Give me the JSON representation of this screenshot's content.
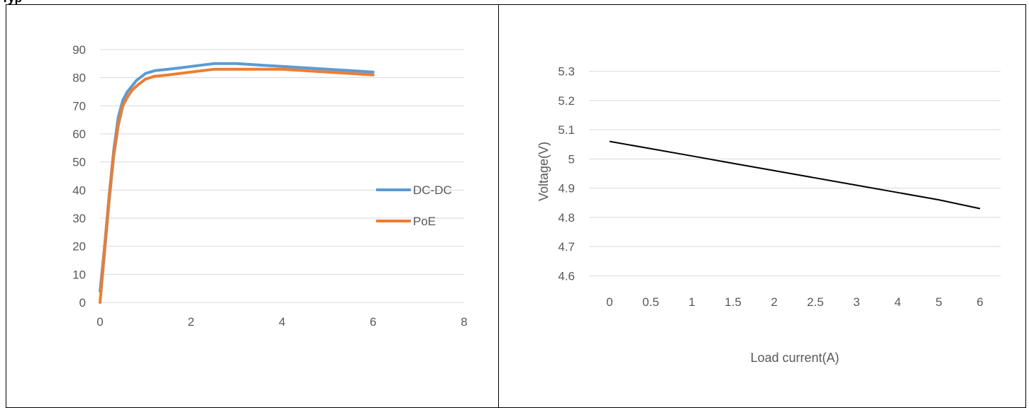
{
  "page": {
    "top_fragment": "Typ"
  },
  "colors": {
    "grid": "#d9d9d9",
    "dcdc": "#5b9bd5",
    "poe": "#ed7d31",
    "voltage": "#000000"
  },
  "chart_data": [
    {
      "type": "scatter",
      "title": "",
      "xlabel": "",
      "ylabel": "",
      "xlim": [
        0,
        8
      ],
      "ylim": [
        0,
        90
      ],
      "xticks": [
        "0",
        "2",
        "4",
        "6",
        "8"
      ],
      "yticks": [
        "0",
        "10",
        "20",
        "30",
        "40",
        "50",
        "60",
        "70",
        "80",
        "90"
      ],
      "grid": true,
      "legend": "right",
      "series": [
        {
          "name": "DC-DC",
          "color": "#5b9bd5",
          "x": [
            0,
            0.1,
            0.2,
            0.3,
            0.4,
            0.5,
            0.6,
            0.7,
            0.8,
            1.0,
            1.2,
            1.5,
            2.0,
            2.5,
            3.0,
            4.0,
            5.0,
            6.0
          ],
          "y": [
            4,
            20,
            38,
            54,
            66,
            72,
            75,
            77,
            79,
            81.5,
            82.5,
            83,
            84,
            85,
            85,
            84,
            83,
            82
          ]
        },
        {
          "name": "PoE",
          "color": "#ed7d31",
          "x": [
            0,
            0.1,
            0.2,
            0.3,
            0.4,
            0.5,
            0.6,
            0.7,
            0.8,
            1.0,
            1.2,
            1.5,
            2.0,
            2.5,
            3.0,
            4.0,
            5.0,
            6.0
          ],
          "y": [
            0,
            18,
            36,
            52,
            63,
            70,
            73,
            75.5,
            77,
            79.5,
            80.5,
            81,
            82,
            83,
            83,
            83,
            82,
            81
          ]
        }
      ]
    },
    {
      "type": "line",
      "title": "",
      "xlabel": "Load current(A)",
      "ylabel": "Voltage(V)",
      "categories": [
        "0",
        "0.5",
        "1",
        "1.5",
        "2",
        "2.5",
        "3",
        "4",
        "5",
        "6"
      ],
      "ylim": [
        4.55,
        5.35
      ],
      "yticks": [
        "4.6",
        "4.7",
        "4.8",
        "4.9",
        "5",
        "5.1",
        "5.2",
        "5.3"
      ],
      "grid": true,
      "series": [
        {
          "color": "#000000",
          "values": [
            5.06,
            5.035,
            5.01,
            4.985,
            4.96,
            4.935,
            4.91,
            4.885,
            4.86,
            4.83
          ]
        }
      ]
    }
  ]
}
